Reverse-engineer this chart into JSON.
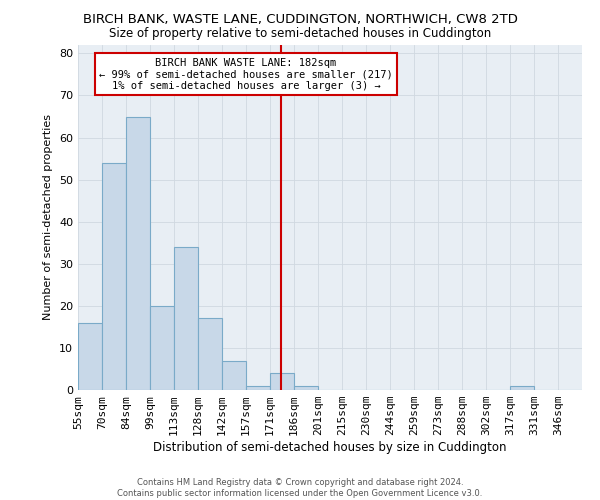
{
  "title": "BIRCH BANK, WASTE LANE, CUDDINGTON, NORTHWICH, CW8 2TD",
  "subtitle": "Size of property relative to semi-detached houses in Cuddington",
  "xlabel": "Distribution of semi-detached houses by size in Cuddington",
  "ylabel": "Number of semi-detached properties",
  "categories": [
    "55sqm",
    "70sqm",
    "84sqm",
    "99sqm",
    "113sqm",
    "128sqm",
    "142sqm",
    "157sqm",
    "171sqm",
    "186sqm",
    "201sqm",
    "215sqm",
    "230sqm",
    "244sqm",
    "259sqm",
    "273sqm",
    "288sqm",
    "302sqm",
    "317sqm",
    "331sqm",
    "346sqm"
  ],
  "values": [
    16,
    54,
    65,
    20,
    34,
    17,
    7,
    1,
    4,
    1,
    0,
    0,
    0,
    0,
    0,
    0,
    0,
    0,
    1,
    0,
    0
  ],
  "bar_color": "#c8d8e8",
  "bar_edge_color": "#7aaac8",
  "vline_color": "#cc0000",
  "annotation_title": "BIRCH BANK WASTE LANE: 182sqm",
  "annotation_line1": "← 99% of semi-detached houses are smaller (217)",
  "annotation_line2": "1% of semi-detached houses are larger (3) →",
  "annotation_box_facecolor": "#ffffff",
  "annotation_box_edgecolor": "#cc0000",
  "ylim": [
    0,
    82
  ],
  "yticks": [
    0,
    10,
    20,
    30,
    40,
    50,
    60,
    70,
    80
  ],
  "grid_color": "#d0d8e0",
  "background_color": "#e8eef4",
  "footer1": "Contains HM Land Registry data © Crown copyright and database right 2024.",
  "footer2": "Contains public sector information licensed under the Open Government Licence v3.0."
}
